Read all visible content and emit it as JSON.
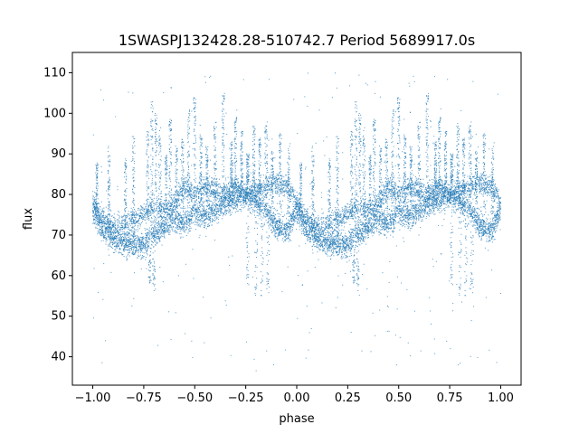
{
  "chart_data": {
    "type": "scatter",
    "title": "1SWASPJ132428.28-510742.7 Period 5689917.0s",
    "xlabel": "phase",
    "ylabel": "flux",
    "xlim": [
      -1.1,
      1.1
    ],
    "ylim": [
      33,
      115
    ],
    "xticks": [
      -1.0,
      -0.75,
      -0.5,
      -0.25,
      0.0,
      0.25,
      0.5,
      0.75,
      1.0
    ],
    "xtick_labels": [
      "−1.00",
      "−0.75",
      "−0.50",
      "−0.25",
      "0.00",
      "0.25",
      "0.50",
      "0.75",
      "1.00"
    ],
    "yticks": [
      40,
      50,
      60,
      70,
      80,
      90,
      100,
      110
    ],
    "ytick_labels": [
      "40",
      "50",
      "60",
      "70",
      "80",
      "90",
      "100",
      "110"
    ],
    "grid": false,
    "legend": false,
    "point_color": "#1f77b4",
    "phase_range": [
      -1.0,
      1.0
    ],
    "periodic_in_phase": 1.0,
    "baseline_curve": {
      "x": [
        0.0,
        0.05,
        0.1,
        0.15,
        0.2,
        0.25,
        0.3,
        0.35,
        0.4,
        0.45,
        0.5,
        0.55,
        0.6,
        0.65,
        0.7,
        0.75,
        0.8,
        0.85,
        0.9,
        0.95,
        1.0
      ],
      "y": [
        76,
        71,
        69,
        68.5,
        68,
        67.5,
        70,
        72,
        74,
        72.5,
        76,
        75,
        76,
        78,
        79,
        80,
        78,
        76,
        72,
        71,
        76
      ]
    },
    "upper_branch": {
      "x": [
        0.0,
        0.05,
        0.1,
        0.15,
        0.2,
        0.25,
        0.3,
        0.35,
        0.4,
        0.45,
        0.5,
        0.55,
        0.6,
        0.65,
        0.7,
        0.75,
        0.8,
        0.85,
        0.9,
        0.95,
        1.0
      ],
      "y": [
        78,
        74,
        72,
        73,
        74,
        75,
        77,
        76,
        78,
        82,
        80,
        82,
        81,
        80,
        82,
        80,
        81,
        82,
        83,
        82,
        78
      ]
    },
    "flare_phases": [
      0.02,
      0.08,
      0.16,
      0.2,
      0.27,
      0.29,
      0.31,
      0.33,
      0.36,
      0.38,
      0.41,
      0.44,
      0.47,
      0.5,
      0.53,
      0.56,
      0.6,
      0.64,
      0.68,
      0.7,
      0.73,
      0.76,
      0.79,
      0.82,
      0.85,
      0.88,
      0.92,
      0.96
    ],
    "flare_peaks": [
      88,
      92,
      89,
      95,
      96,
      103,
      100,
      97,
      90,
      99,
      92,
      95,
      101,
      104,
      95,
      92,
      98,
      105,
      93,
      99,
      96,
      90,
      97,
      94,
      98,
      91,
      95,
      92
    ],
    "dip_phases": [
      0.28,
      0.3,
      0.76,
      0.8,
      0.83,
      0.86
    ],
    "dip_floors": [
      58,
      56,
      57,
      55,
      55,
      54
    ]
  }
}
